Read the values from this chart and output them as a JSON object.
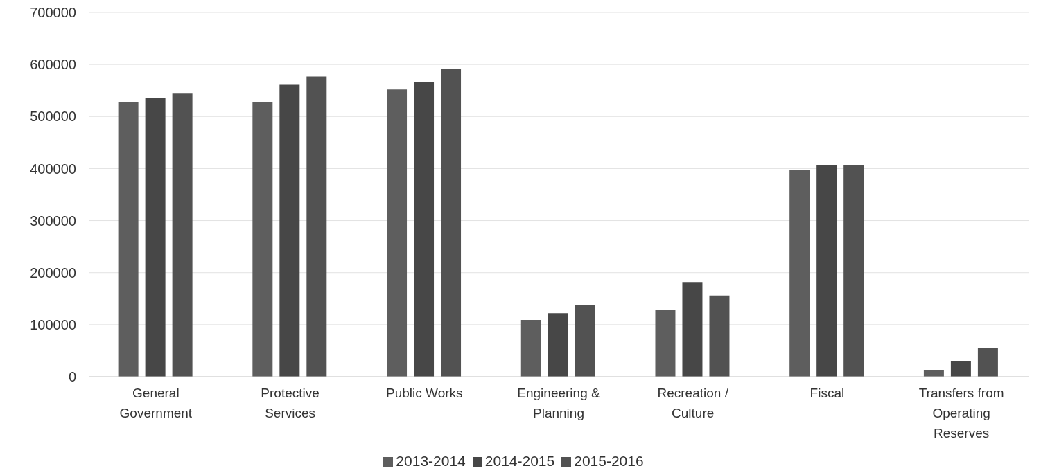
{
  "chart_data": {
    "type": "bar",
    "categories": [
      "General Government",
      "Protective Services",
      "Public Works",
      "Engineering & Planning",
      "Recreation / Culture",
      "Fiscal",
      "Transfers from Operating Reserves"
    ],
    "series": [
      {
        "name": "2013-2014",
        "color": "#5e5e5e",
        "values": [
          527000,
          527000,
          552000,
          109000,
          129000,
          398000,
          12000
        ]
      },
      {
        "name": "2014-2015",
        "color": "#474747",
        "values": [
          536000,
          561000,
          567000,
          122000,
          182000,
          406000,
          30000
        ]
      },
      {
        "name": "2015-2016",
        "color": "#525252",
        "values": [
          544000,
          577000,
          591000,
          137000,
          156000,
          406000,
          55000
        ]
      }
    ],
    "ylim": [
      0,
      700000
    ],
    "yticks": [
      0,
      100000,
      200000,
      300000,
      400000,
      500000,
      600000,
      700000
    ],
    "grid": "y",
    "legend": "bottom"
  }
}
